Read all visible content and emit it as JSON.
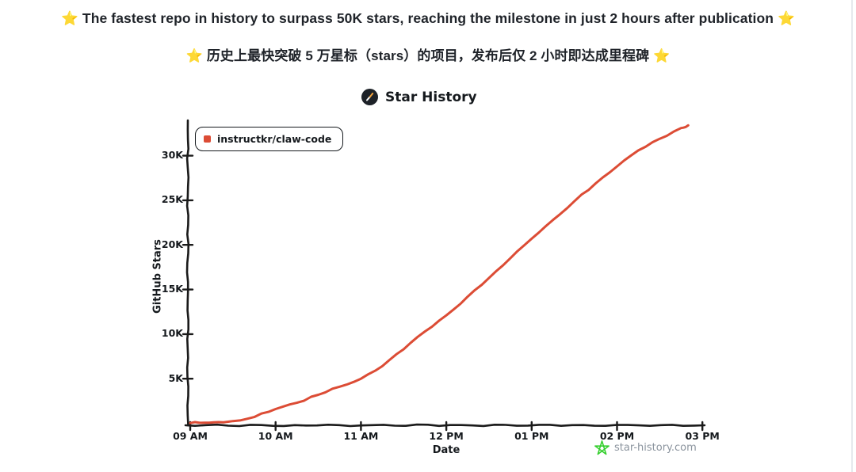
{
  "page": {
    "title_en": "⭐ The fastest repo in history to surpass 50K stars, reaching the milestone in just 2 hours after publication ⭐",
    "title_zh": "⭐ 历史上最快突破 5 万星标（stars）的项目，发布后仅 2 小时即达成里程碑 ⭐"
  },
  "chart": {
    "title": "Star History",
    "legend_label": "instructkr/claw-code",
    "y_axis_label": "GitHub Stars",
    "x_axis_label": "Date",
    "watermark": "star-history.com"
  },
  "colors": {
    "line": "#dc4c35",
    "axis": "#1a1a1a",
    "watermark_star_green": "#35cf2e",
    "watermark_text_gray": "#8b949e",
    "header_text": "#1f2329",
    "logo_dark": "#1d2228",
    "logo_slash_orange": "#f2a33c"
  },
  "chart_data": {
    "type": "line",
    "title": "Star History",
    "xlabel": "Date",
    "ylabel": "GitHub Stars",
    "legend_position": "top-left",
    "grid": false,
    "x_ticks": [
      "09 AM",
      "10 AM",
      "11 AM",
      "12 PM",
      "01 PM",
      "02 PM",
      "03 PM"
    ],
    "y_ticks": [
      {
        "label": "5K",
        "value": 5000
      },
      {
        "label": "10K",
        "value": 10000
      },
      {
        "label": "15K",
        "value": 15000
      },
      {
        "label": "20K",
        "value": 20000
      },
      {
        "label": "25K",
        "value": 25000
      },
      {
        "label": "30K",
        "value": 30000
      }
    ],
    "ylim": [
      0,
      33800
    ],
    "xlim_hours": [
      "09:00",
      "15:00"
    ],
    "series": [
      {
        "name": "instructkr/claw-code",
        "color": "#dc4c35",
        "points": [
          {
            "time": "09:00",
            "stars": 30
          },
          {
            "time": "09:10",
            "stars": 60
          },
          {
            "time": "09:20",
            "stars": 130
          },
          {
            "time": "09:30",
            "stars": 250
          },
          {
            "time": "09:45",
            "stars": 700
          },
          {
            "time": "10:00",
            "stars": 1600
          },
          {
            "time": "10:15",
            "stars": 2300
          },
          {
            "time": "10:30",
            "stars": 3200
          },
          {
            "time": "10:45",
            "stars": 4100
          },
          {
            "time": "11:00",
            "stars": 5000
          },
          {
            "time": "11:15",
            "stars": 6400
          },
          {
            "time": "11:30",
            "stars": 8300
          },
          {
            "time": "11:45",
            "stars": 10300
          },
          {
            "time": "12:00",
            "stars": 12100
          },
          {
            "time": "12:15",
            "stars": 14200
          },
          {
            "time": "12:30",
            "stars": 16300
          },
          {
            "time": "12:45",
            "stars": 18500
          },
          {
            "time": "13:00",
            "stars": 20700
          },
          {
            "time": "13:15",
            "stars": 22800
          },
          {
            "time": "13:30",
            "stars": 24900
          },
          {
            "time": "13:45",
            "stars": 26900
          },
          {
            "time": "14:00",
            "stars": 28800
          },
          {
            "time": "14:15",
            "stars": 30600
          },
          {
            "time": "14:30",
            "stars": 31900
          },
          {
            "time": "14:45",
            "stars": 33100
          },
          {
            "time": "14:50",
            "stars": 33400
          }
        ]
      }
    ]
  }
}
